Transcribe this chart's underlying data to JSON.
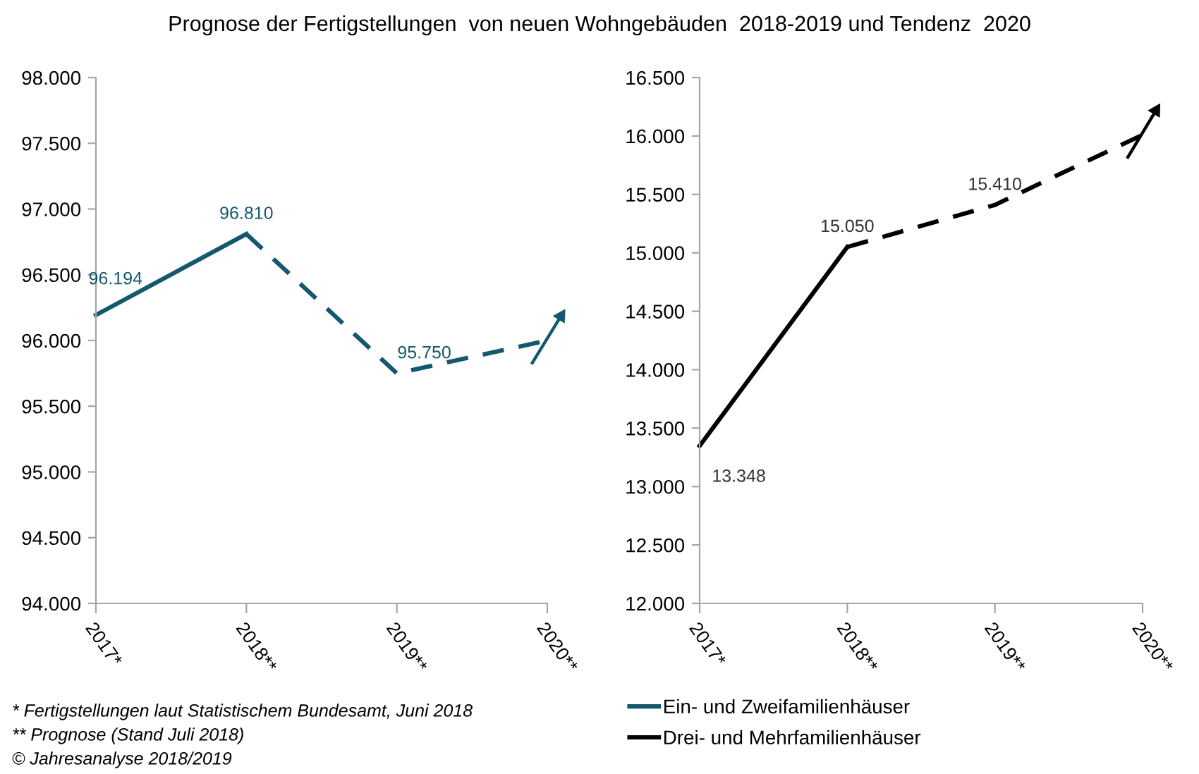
{
  "chart_data": [
    {
      "type": "line",
      "title": "Prognose der Fertigstellungen  von neuen Wohngebäuden  2018-2019 und Tendenz  2020",
      "categories": [
        "2017*",
        "2018**",
        "2019**",
        "2020**"
      ],
      "series": [
        {
          "name": "Ein- und Zweifamilienhäuser",
          "color": "#13586e",
          "line_style": "solid",
          "values": [
            96194,
            96810,
            null,
            null
          ],
          "value_labels": [
            "96.194",
            "96.810",
            null,
            null
          ]
        },
        {
          "color": "#13586e",
          "line_style": "dashed",
          "values": [
            null,
            96810,
            95750,
            96000
          ],
          "value_labels": [
            null,
            null,
            "95.750",
            null
          ]
        }
      ],
      "ylim": [
        94000,
        98000
      ],
      "yticks": [
        {
          "value": 94000,
          "label": "94.000"
        },
        {
          "value": 94500,
          "label": "94.500"
        },
        {
          "value": 95000,
          "label": "95.000"
        },
        {
          "value": 95500,
          "label": "95.500"
        },
        {
          "value": 96000,
          "label": "96.000"
        },
        {
          "value": 96500,
          "label": "96.500"
        },
        {
          "value": 97000,
          "label": "97.000"
        },
        {
          "value": 97500,
          "label": "97.500"
        },
        {
          "value": 98000,
          "label": "98.000"
        }
      ],
      "legend": "bottom",
      "grid": false,
      "annotations": [
        "* Fertigstellungen laut Statistischem Bundesamt, Juni 2018",
        "** Prognose (Stand Juli 2018)",
        "© Jahresanalyse 2018/2019"
      ]
    },
    {
      "type": "line",
      "categories": [
        "2017*",
        "2018**",
        "2019**",
        "2020**"
      ],
      "series": [
        {
          "name": "Drei- und Mehrfamilienhäuser",
          "color": "#000000",
          "line_style": "solid",
          "values": [
            13348,
            15050,
            null,
            null
          ],
          "value_labels": [
            "13.348",
            "15.050",
            null,
            null
          ]
        },
        {
          "color": "#000000",
          "line_style": "dashed",
          "values": [
            null,
            15050,
            15410,
            16010
          ],
          "value_labels": [
            null,
            null,
            "15.410",
            null
          ]
        }
      ],
      "ylim": [
        12000,
        16500
      ],
      "yticks": [
        {
          "value": 12000,
          "label": "12.000"
        },
        {
          "value": 12500,
          "label": "12.500"
        },
        {
          "value": 13000,
          "label": "13.000"
        },
        {
          "value": 13500,
          "label": "13.500"
        },
        {
          "value": 14000,
          "label": "14.000"
        },
        {
          "value": 14500,
          "label": "14.500"
        },
        {
          "value": 15000,
          "label": "15.000"
        },
        {
          "value": 15500,
          "label": "15.500"
        },
        {
          "value": 16000,
          "label": "16.000"
        },
        {
          "value": 16500,
          "label": "16.500"
        }
      ],
      "legend": "bottom",
      "grid": false
    }
  ]
}
